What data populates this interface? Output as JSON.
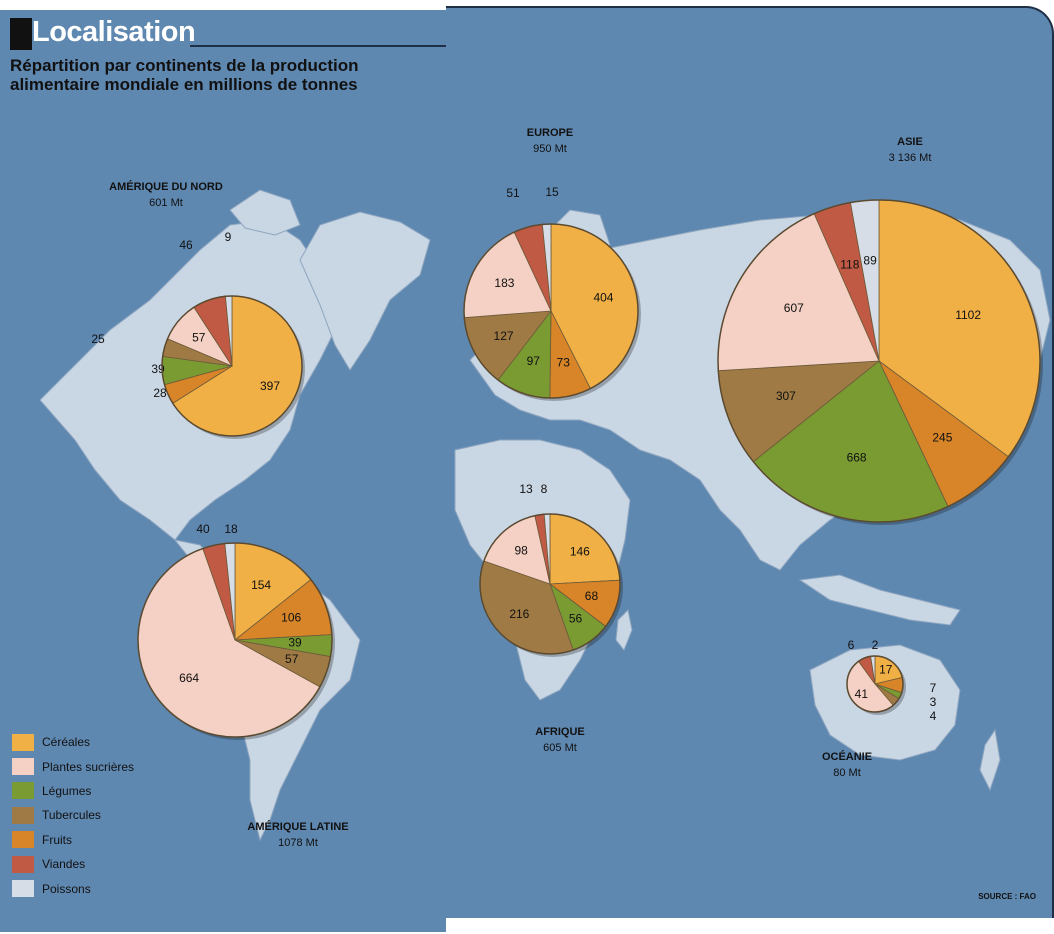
{
  "header": {
    "title": "Localisation",
    "subtitle": "Répartition par continents de la production alimentaire mondiale en millions de tonnes"
  },
  "source": "SOURCE : FAO",
  "legend": [
    {
      "label": "Céréales",
      "color": "#f0b045"
    },
    {
      "label": "Plantes sucrières",
      "color": "#f5d0c4"
    },
    {
      "label": "Légumes",
      "color": "#7a9a32"
    },
    {
      "label": "Tubercules",
      "color": "#a07a44"
    },
    {
      "label": "Fruits",
      "color": "#d88428"
    },
    {
      "label": "Viandes",
      "color": "#c05a44"
    },
    {
      "label": "Poissons",
      "color": "#d6dde6"
    }
  ],
  "chart_data": [
    {
      "type": "pie",
      "name": "AMÉRIQUE DU NORD",
      "total": "601 Mt",
      "categories": [
        "Céréales",
        "Fruits",
        "Légumes",
        "Tubercules",
        "Plantes sucrières",
        "Viandes",
        "Poissons"
      ],
      "values": [
        397,
        28,
        39,
        25,
        57,
        46,
        9
      ]
    },
    {
      "type": "pie",
      "name": "AMÉRIQUE LATINE",
      "total": "1078 Mt",
      "categories": [
        "Céréales",
        "Fruits",
        "Légumes",
        "Tubercules",
        "Plantes sucrières",
        "Viandes",
        "Poissons"
      ],
      "values": [
        154,
        106,
        39,
        57,
        664,
        40,
        18
      ]
    },
    {
      "type": "pie",
      "name": "EUROPE",
      "total": "950 Mt",
      "categories": [
        "Céréales",
        "Fruits",
        "Légumes",
        "Tubercules",
        "Plantes sucrières",
        "Viandes",
        "Poissons"
      ],
      "values": [
        404,
        73,
        97,
        127,
        183,
        51,
        15
      ]
    },
    {
      "type": "pie",
      "name": "ASIE",
      "total": "3 136 Mt",
      "categories": [
        "Céréales",
        "Fruits",
        "Légumes",
        "Tubercules",
        "Plantes sucrières",
        "Viandes",
        "Poissons"
      ],
      "values": [
        1102,
        245,
        668,
        307,
        607,
        118,
        89
      ]
    },
    {
      "type": "pie",
      "name": "AFRIQUE",
      "total": "605 Mt",
      "categories": [
        "Céréales",
        "Fruits",
        "Légumes",
        "Tubercules",
        "Plantes sucrières",
        "Viandes",
        "Poissons"
      ],
      "values": [
        146,
        68,
        56,
        216,
        98,
        13,
        8
      ]
    },
    {
      "type": "pie",
      "name": "OCÉANIE",
      "total": "80 Mt",
      "categories": [
        "Céréales",
        "Fruits",
        "Légumes",
        "Tubercules",
        "Plantes sucrières",
        "Viandes",
        "Poissons"
      ],
      "values": [
        17,
        7,
        3,
        4,
        41,
        6,
        2
      ]
    }
  ]
}
